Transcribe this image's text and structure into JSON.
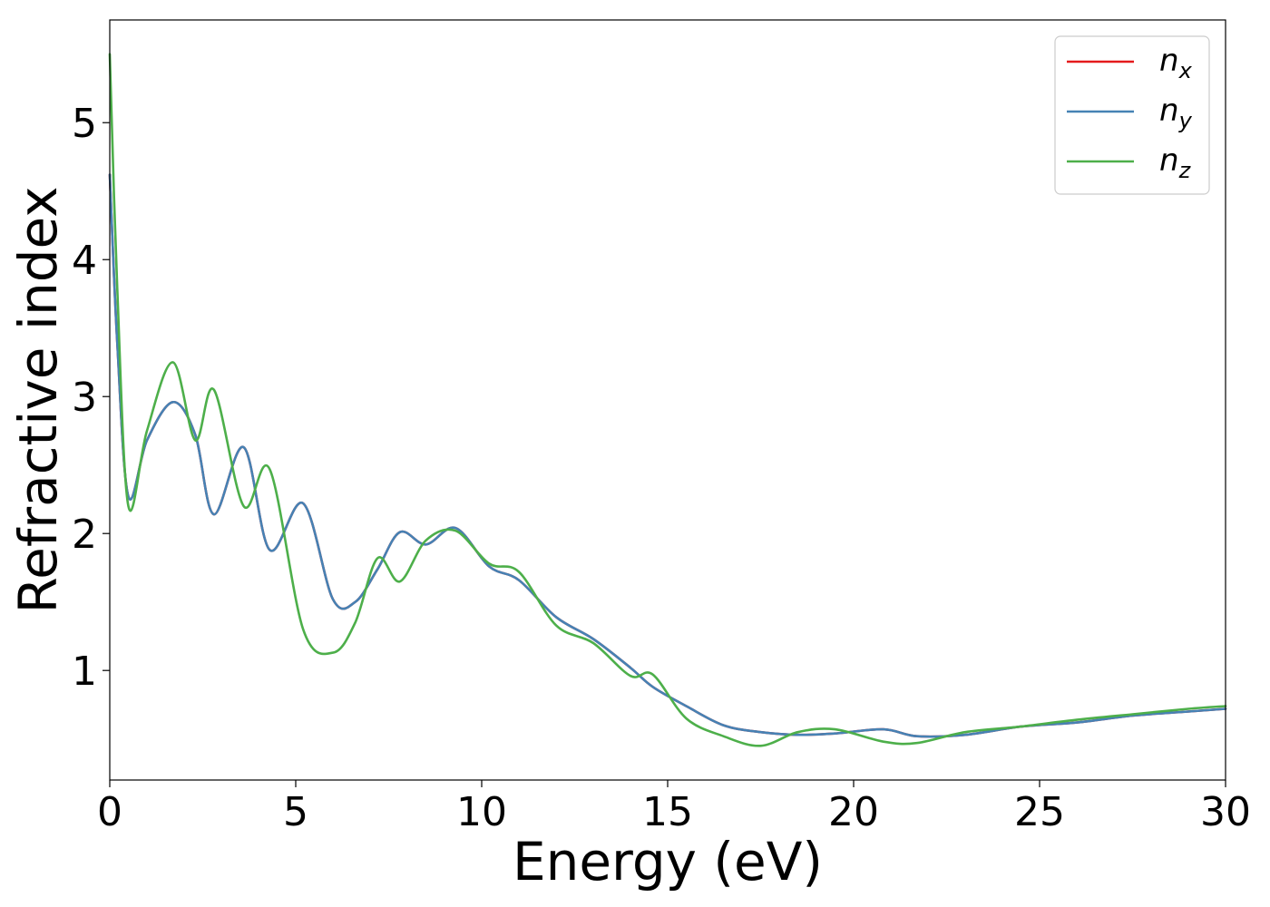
{
  "chart_data": {
    "type": "line",
    "title": "",
    "xlabel": "Energy (eV)",
    "ylabel": "Refractive index",
    "xlim": [
      0,
      30
    ],
    "ylim": [
      0.2,
      5.75
    ],
    "xticks": [
      0,
      5,
      10,
      15,
      20,
      25,
      30
    ],
    "xtick_labels": [
      "0",
      "5",
      "10",
      "15",
      "20",
      "25",
      "30"
    ],
    "yticks": [
      1,
      2,
      3,
      4,
      5
    ],
    "ytick_labels": [
      "1",
      "2",
      "3",
      "4",
      "5"
    ],
    "grid": false,
    "legend_position": "top-right",
    "x": [
      0,
      0.2,
      0.5,
      1.0,
      1.7,
      2.3,
      2.8,
      3.6,
      4.3,
      5.2,
      6.0,
      6.6,
      7.2,
      7.8,
      8.5,
      9.3,
      10.2,
      11.0,
      12.0,
      13.0,
      14.0,
      14.6,
      15.5,
      16.5,
      17.5,
      18.5,
      19.5,
      20.8,
      21.7,
      23.0,
      24.5,
      26.0,
      27.5,
      29.0,
      30.0
    ],
    "series": [
      {
        "name": "n",
        "sub": "x",
        "color": "#e41a1c",
        "values": [
          4.62,
          3.4,
          2.27,
          2.68,
          2.96,
          2.72,
          2.14,
          2.63,
          1.88,
          2.22,
          1.52,
          1.5,
          1.74,
          2.01,
          1.92,
          2.04,
          1.76,
          1.66,
          1.39,
          1.23,
          1.02,
          0.88,
          0.74,
          0.6,
          0.55,
          0.53,
          0.54,
          0.57,
          0.52,
          0.53,
          0.59,
          0.62,
          0.67,
          0.7,
          0.72
        ]
      },
      {
        "name": "n",
        "sub": "y",
        "color": "#4682b4",
        "values": [
          4.62,
          3.4,
          2.27,
          2.68,
          2.96,
          2.72,
          2.14,
          2.63,
          1.88,
          2.22,
          1.52,
          1.5,
          1.74,
          2.01,
          1.92,
          2.04,
          1.76,
          1.66,
          1.39,
          1.23,
          1.02,
          0.88,
          0.74,
          0.6,
          0.55,
          0.53,
          0.54,
          0.57,
          0.52,
          0.53,
          0.59,
          0.62,
          0.67,
          0.7,
          0.72
        ]
      },
      {
        "name": "n",
        "sub": "z",
        "color": "#4daf4a",
        "values": [
          5.5,
          3.8,
          2.2,
          2.75,
          3.25,
          2.68,
          3.05,
          2.2,
          2.47,
          1.3,
          1.13,
          1.35,
          1.82,
          1.65,
          1.95,
          2.02,
          1.78,
          1.72,
          1.33,
          1.2,
          0.96,
          0.97,
          0.65,
          0.52,
          0.45,
          0.55,
          0.57,
          0.48,
          0.47,
          0.55,
          0.59,
          0.64,
          0.68,
          0.72,
          0.74
        ]
      }
    ]
  }
}
